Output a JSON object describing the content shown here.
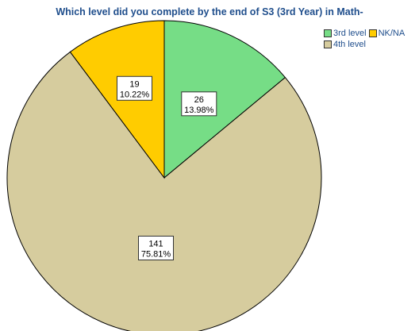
{
  "chart_data": {
    "type": "pie",
    "title": "Which level did you complete by the end of S3 (3rd Year) in Math-",
    "slices": [
      {
        "name": "3rd level",
        "count": "26",
        "percent": "13.98%",
        "value": 13.98,
        "color": "#76dd86"
      },
      {
        "name": "4th level",
        "count": "141",
        "percent": "75.81%",
        "value": 75.81,
        "color": "#d6cc9e"
      },
      {
        "name": "NK/NA",
        "count": "19",
        "percent": "10.22%",
        "value": 10.22,
        "color": "#ffcc00"
      }
    ],
    "legend": {
      "placement": "top-right",
      "rows": [
        [
          {
            "name": "3rd level",
            "color": "#76dd86"
          },
          {
            "name": "NK/NA",
            "color": "#ffcc00"
          }
        ],
        [
          {
            "name": "4th level",
            "color": "#d6cc9e"
          }
        ]
      ]
    }
  }
}
